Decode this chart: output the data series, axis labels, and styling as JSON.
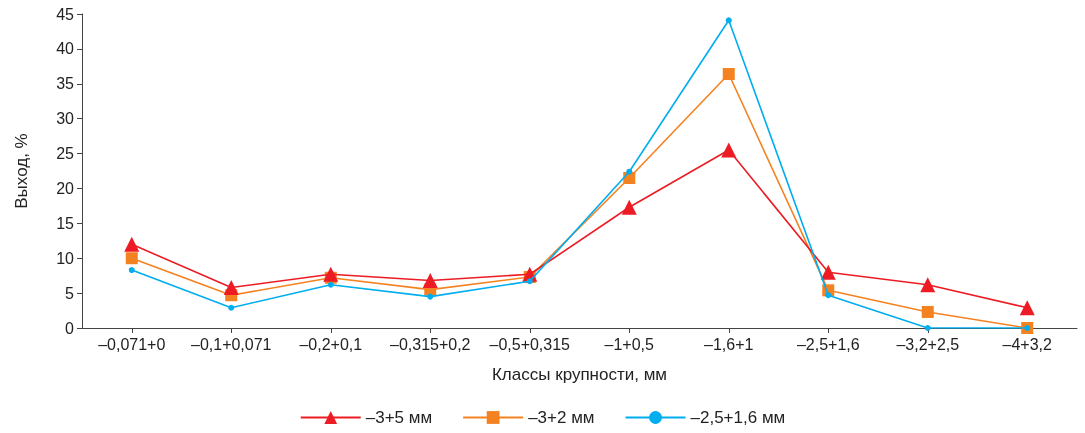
{
  "chart_data": {
    "type": "line",
    "xlabel": "Классы крупности, мм",
    "ylabel": "Выход, %",
    "categories": [
      "–0,071+0",
      "–0,1+0,071",
      "–0,2+0,1",
      "–0,315+0,2",
      "–0,5+0,315",
      "–1+0,5",
      "–1,6+1",
      "–2,5+1,6",
      "–3,2+2,5",
      "–4+3,2"
    ],
    "series": [
      {
        "name": "–3+5 мм",
        "color": "#ed1c24",
        "marker": "triangle",
        "values": [
          12.0,
          5.8,
          7.7,
          6.8,
          7.7,
          17.3,
          25.5,
          8.0,
          6.2,
          2.9
        ]
      },
      {
        "name": "–3+2 мм",
        "color": "#f58220",
        "marker": "square",
        "values": [
          10.0,
          4.7,
          7.2,
          5.5,
          7.3,
          21.5,
          36.4,
          5.4,
          2.3,
          0
        ]
      },
      {
        "name": "–2,5+1,6 мм",
        "color": "#00aeef",
        "marker": "circle",
        "values": [
          8.3,
          2.9,
          6.2,
          4.5,
          6.7,
          22.4,
          44.1,
          4.7,
          0,
          0
        ]
      }
    ],
    "ylim": [
      0,
      45
    ],
    "yticks": [
      0,
      5,
      10,
      15,
      20,
      25,
      30,
      35,
      40,
      45
    ],
    "grid": false,
    "legend": "bottom"
  }
}
